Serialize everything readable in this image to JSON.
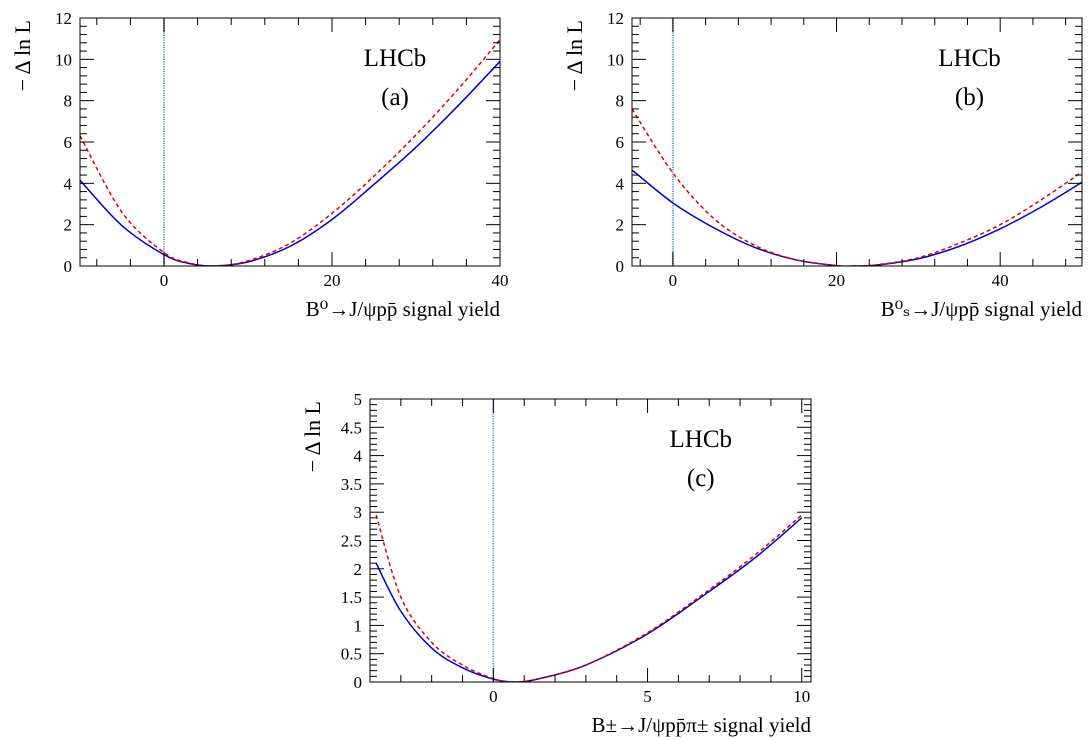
{
  "chart_data": [
    {
      "type": "line",
      "panel_label": "(a)",
      "experiment_label": "LHCb",
      "xlabel": "B⁰→J/ψpp̄ signal yield",
      "ylabel": "− Δ ln L",
      "xlim": [
        -10,
        40
      ],
      "ylim": [
        0,
        12
      ],
      "xticks": [
        0,
        20,
        40
      ],
      "yticks": [
        0,
        2,
        4,
        6,
        8,
        10,
        12
      ],
      "vline_x": 0,
      "series": [
        {
          "color": "#0000cc",
          "style": "solid",
          "x": [
            -10,
            -5,
            0,
            3,
            6,
            10,
            15,
            20,
            25,
            30,
            35,
            40
          ],
          "y": [
            4.15,
            1.95,
            0.55,
            0.12,
            0.0,
            0.2,
            0.95,
            2.25,
            3.95,
            5.75,
            7.75,
            9.9
          ]
        },
        {
          "color": "#dd0000",
          "style": "dashed",
          "x": [
            -10,
            -5,
            0,
            3,
            6,
            10,
            15,
            20,
            25,
            30,
            35,
            40
          ],
          "y": [
            6.3,
            2.6,
            0.65,
            0.15,
            0.0,
            0.25,
            1.1,
            2.55,
            4.35,
            6.35,
            8.55,
            10.95
          ]
        }
      ]
    },
    {
      "type": "line",
      "panel_label": "(b)",
      "experiment_label": "LHCb",
      "xlabel": "B⁰ₛ→J/ψpp̄ signal yield",
      "ylabel": "− Δ ln L",
      "xlim": [
        -5,
        50
      ],
      "ylim": [
        0,
        12
      ],
      "xticks": [
        0,
        20,
        40
      ],
      "yticks": [
        0,
        2,
        4,
        6,
        8,
        10,
        12
      ],
      "vline_x": 0,
      "series": [
        {
          "color": "#0000cc",
          "style": "solid",
          "x": [
            -5,
            0,
            5,
            10,
            15,
            20,
            22,
            25,
            30,
            35,
            40,
            45,
            50
          ],
          "y": [
            4.65,
            3.05,
            1.85,
            0.9,
            0.3,
            0.02,
            0.0,
            0.05,
            0.35,
            0.95,
            1.8,
            2.85,
            4.05
          ]
        },
        {
          "color": "#dd0000",
          "style": "dashed",
          "x": [
            -5,
            0,
            5,
            10,
            15,
            20,
            22,
            25,
            30,
            35,
            40,
            45,
            50
          ],
          "y": [
            7.6,
            4.5,
            2.3,
            1.0,
            0.3,
            0.02,
            0.0,
            0.06,
            0.4,
            1.1,
            2.0,
            3.2,
            4.55
          ]
        }
      ]
    },
    {
      "type": "line",
      "panel_label": "(c)",
      "experiment_label": "LHCb",
      "xlabel": "B±→J/ψpp̄π± signal yield",
      "ylabel": "− Δ ln L",
      "xlim": [
        -4,
        10.3
      ],
      "ylim": [
        0,
        5
      ],
      "xticks": [
        0,
        5,
        10
      ],
      "yticks": [
        0,
        0.5,
        1,
        1.5,
        2,
        2.5,
        3,
        3.5,
        4,
        4.5,
        5
      ],
      "vline_x": 0,
      "series": [
        {
          "color": "#0000cc",
          "style": "solid",
          "x": [
            -3.8,
            -3,
            -2,
            -1,
            0,
            0.7,
            1.5,
            3,
            5,
            7,
            8.5,
            10
          ],
          "y": [
            2.1,
            1.25,
            0.6,
            0.25,
            0.05,
            0.0,
            0.06,
            0.3,
            0.85,
            1.6,
            2.2,
            2.9
          ]
        },
        {
          "color": "#dd0000",
          "style": "dashed",
          "x": [
            -3.8,
            -3,
            -2,
            -1,
            0,
            0.7,
            1.5,
            3,
            5,
            7,
            8.5,
            10
          ],
          "y": [
            2.95,
            1.5,
            0.7,
            0.3,
            0.06,
            0.0,
            0.06,
            0.3,
            0.87,
            1.63,
            2.25,
            2.95
          ]
        }
      ]
    }
  ]
}
